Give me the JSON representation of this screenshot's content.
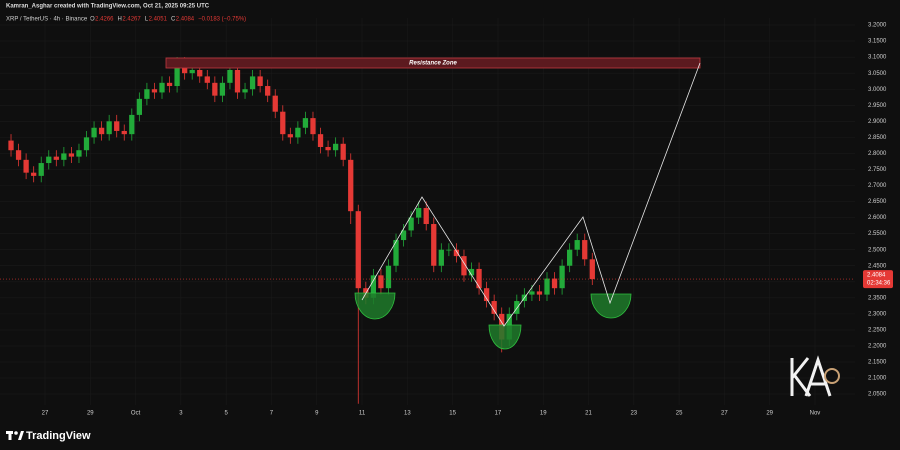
{
  "header": {
    "credit": "Kamran_Asghar created with TradingView.com, Oct 21, 2025 09:25 UTC"
  },
  "footer": {
    "brand": "TradingView"
  },
  "chart_data": {
    "type": "candlestick",
    "legend": {
      "symbol": "XRP / TetherUS · 4h · Binance",
      "o_label": "O",
      "open": 2.4266,
      "h_label": "H",
      "high": 2.4267,
      "l_label": "L",
      "low": 2.4051,
      "c_label": "C",
      "close": 2.4084,
      "change": "−0.0183 (−0.75%)"
    },
    "annotation": "Resistance Zone",
    "last_price": 2.4084,
    "countdown": "02:34:36",
    "up_color": "#22ab3a",
    "down_color": "#e53935",
    "open": [
      2.84,
      2.81,
      2.78,
      2.74,
      2.73,
      2.77,
      2.79,
      2.78,
      2.8,
      2.79,
      2.81,
      2.85,
      2.88,
      2.86,
      2.9,
      2.87,
      2.86,
      2.92,
      2.97,
      3.0,
      2.99,
      3.02,
      3.01,
      3.08,
      3.05,
      3.06,
      3.04,
      3.02,
      2.98,
      3.02,
      3.06,
      2.99,
      3.0,
      3.04,
      3.01,
      2.98,
      2.93,
      2.86,
      2.85,
      2.88,
      2.91,
      2.86,
      2.82,
      2.81,
      2.83,
      2.78,
      2.62,
      2.38,
      2.35,
      2.42,
      2.38,
      2.45,
      2.53,
      2.56,
      2.6,
      2.63,
      2.58,
      2.45,
      2.5,
      2.5,
      2.48,
      2.42,
      2.44,
      2.38,
      2.34,
      2.3,
      2.22,
      2.3,
      2.34,
      2.36,
      2.37,
      2.36,
      2.41,
      2.38,
      2.45,
      2.5,
      2.53,
      2.47
    ],
    "high": [
      2.86,
      2.83,
      2.8,
      2.76,
      2.79,
      2.81,
      2.81,
      2.82,
      2.82,
      2.83,
      2.87,
      2.9,
      2.9,
      2.92,
      2.92,
      2.89,
      2.94,
      2.99,
      3.02,
      3.02,
      3.04,
      3.04,
      3.1,
      3.1,
      3.08,
      3.08,
      3.06,
      3.04,
      3.04,
      3.08,
      3.08,
      3.02,
      3.06,
      3.06,
      3.03,
      3.0,
      2.95,
      2.88,
      2.9,
      2.93,
      2.93,
      2.88,
      2.84,
      2.85,
      2.85,
      2.8,
      2.64,
      2.4,
      2.44,
      2.44,
      2.47,
      2.55,
      2.58,
      2.62,
      2.65,
      2.65,
      2.6,
      2.52,
      2.52,
      2.52,
      2.5,
      2.46,
      2.46,
      2.4,
      2.36,
      2.32,
      2.32,
      2.36,
      2.38,
      2.39,
      2.39,
      2.43,
      2.43,
      2.47,
      2.52,
      2.55,
      2.55,
      2.49
    ],
    "low": [
      2.79,
      2.76,
      2.72,
      2.71,
      2.71,
      2.75,
      2.76,
      2.76,
      2.77,
      2.77,
      2.79,
      2.83,
      2.84,
      2.84,
      2.85,
      2.84,
      2.84,
      2.9,
      2.95,
      2.97,
      2.97,
      2.99,
      2.99,
      3.03,
      3.03,
      3.02,
      3.0,
      2.96,
      2.96,
      3.0,
      2.97,
      2.97,
      2.98,
      2.99,
      2.96,
      2.91,
      2.84,
      2.83,
      2.83,
      2.86,
      2.84,
      2.8,
      2.79,
      2.79,
      2.76,
      2.58,
      2.02,
      2.33,
      2.33,
      2.36,
      2.36,
      2.43,
      2.51,
      2.54,
      2.58,
      2.56,
      2.43,
      2.43,
      2.48,
      2.46,
      2.4,
      2.4,
      2.36,
      2.32,
      2.28,
      2.18,
      2.2,
      2.28,
      2.32,
      2.34,
      2.34,
      2.34,
      2.36,
      2.36,
      2.43,
      2.48,
      2.45,
      2.39
    ],
    "close": [
      2.81,
      2.78,
      2.74,
      2.73,
      2.77,
      2.79,
      2.78,
      2.8,
      2.79,
      2.81,
      2.85,
      2.88,
      2.86,
      2.9,
      2.87,
      2.86,
      2.92,
      2.97,
      3.0,
      2.99,
      3.02,
      3.01,
      3.08,
      3.05,
      3.06,
      3.04,
      3.02,
      2.98,
      3.02,
      3.06,
      2.99,
      3.0,
      3.04,
      3.01,
      2.98,
      2.93,
      2.86,
      2.85,
      2.88,
      2.91,
      2.86,
      2.82,
      2.81,
      2.83,
      2.78,
      2.62,
      2.38,
      2.35,
      2.42,
      2.38,
      2.45,
      2.53,
      2.56,
      2.6,
      2.63,
      2.58,
      2.45,
      2.5,
      2.5,
      2.48,
      2.42,
      2.44,
      2.38,
      2.34,
      2.3,
      2.22,
      2.3,
      2.34,
      2.36,
      2.37,
      2.36,
      2.41,
      2.38,
      2.45,
      2.5,
      2.53,
      2.47,
      2.4084
    ],
    "xlim": [
      -1.46,
      111.8
    ],
    "xticks": [
      {
        "value": 4.5,
        "label": "27"
      },
      {
        "value": 10.5,
        "label": "29"
      },
      {
        "value": 16.5,
        "label": "Oct"
      },
      {
        "value": 22.5,
        "label": "3"
      },
      {
        "value": 28.5,
        "label": "5"
      },
      {
        "value": 34.5,
        "label": "7"
      },
      {
        "value": 40.5,
        "label": "9"
      },
      {
        "value": 46.5,
        "label": "11"
      },
      {
        "value": 52.5,
        "label": "13"
      },
      {
        "value": 58.5,
        "label": "15"
      },
      {
        "value": 64.5,
        "label": "17"
      },
      {
        "value": 70.5,
        "label": "19"
      },
      {
        "value": 76.5,
        "label": "21"
      },
      {
        "value": 82.5,
        "label": "23"
      },
      {
        "value": 88.5,
        "label": "25"
      },
      {
        "value": 94.5,
        "label": "27"
      },
      {
        "value": 100.5,
        "label": "29"
      },
      {
        "value": 106.5,
        "label": "Nov"
      }
    ],
    "ylim": [
      2.016,
      3.222
    ],
    "yticks": [
      {
        "value": 2.05,
        "label": "2.0500"
      },
      {
        "value": 2.1,
        "label": "2.1000"
      },
      {
        "value": 2.15,
        "label": "2.1500"
      },
      {
        "value": 2.2,
        "label": "2.2000"
      },
      {
        "value": 2.25,
        "label": "2.2500"
      },
      {
        "value": 2.3,
        "label": "2.3000"
      },
      {
        "value": 2.35,
        "label": "2.3500"
      },
      {
        "value": 2.4,
        "label": "2.4000"
      },
      {
        "value": 2.45,
        "label": "2.4500"
      },
      {
        "value": 2.5,
        "label": "2.5000"
      },
      {
        "value": 2.55,
        "label": "2.5500"
      },
      {
        "value": 2.6,
        "label": "2.6000"
      },
      {
        "value": 2.65,
        "label": "2.6500"
      },
      {
        "value": 2.7,
        "label": "2.7000"
      },
      {
        "value": 2.75,
        "label": "2.7500"
      },
      {
        "value": 2.8,
        "label": "2.8000"
      },
      {
        "value": 2.85,
        "label": "2.8500"
      },
      {
        "value": 2.9,
        "label": "2.9000"
      },
      {
        "value": 2.95,
        "label": "2.9500"
      },
      {
        "value": 3.0,
        "label": "3.0000"
      },
      {
        "value": 3.05,
        "label": "3.0500"
      },
      {
        "value": 3.1,
        "label": "3.1000"
      },
      {
        "value": 3.15,
        "label": "3.1500"
      },
      {
        "value": 3.2,
        "label": "3.2000"
      }
    ]
  }
}
